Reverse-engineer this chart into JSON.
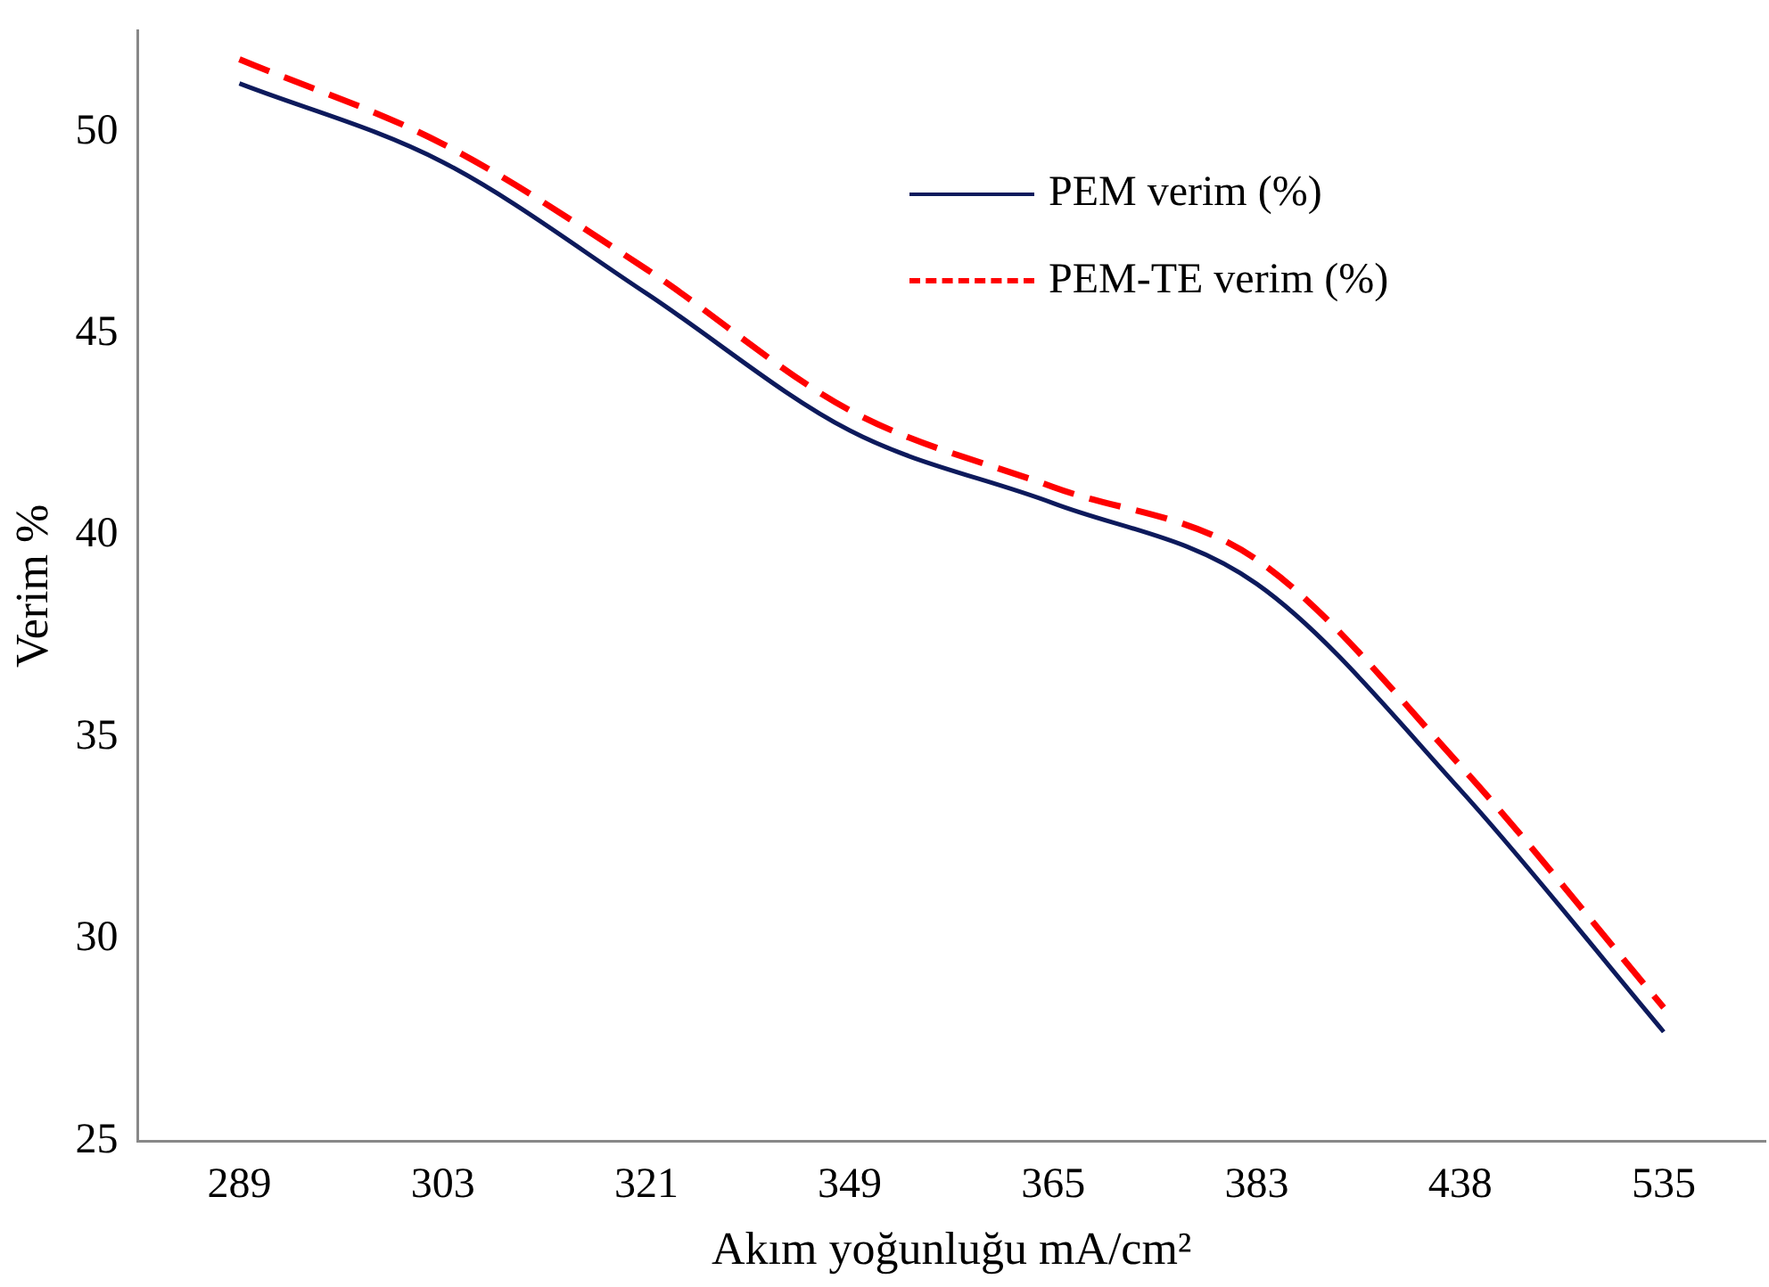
{
  "chart_data": {
    "type": "line",
    "xlabel": "Akım yoğunluğu mA/cm²",
    "ylabel": "Verim %",
    "categories": [
      "289",
      "303",
      "321",
      "349",
      "365",
      "383",
      "438",
      "535"
    ],
    "ylim": [
      25,
      52.5
    ],
    "yticks": [
      25,
      30,
      35,
      40,
      45,
      50
    ],
    "grid": false,
    "legend": "top right",
    "marker": "none",
    "series": [
      {
        "name": "PEM verim (%)",
        "color": "#0d1a5c",
        "line_style": "solid",
        "values": [
          51.2,
          49.25,
          46.0,
          42.6,
          40.8,
          38.8,
          33.7,
          27.7
        ]
      },
      {
        "name": "PEM-TE verim (%)",
        "color": "#ff0000",
        "line_style": "dashed",
        "values": [
          51.8,
          49.7,
          46.6,
          43.1,
          41.2,
          39.4,
          34.3,
          28.3
        ]
      }
    ]
  }
}
